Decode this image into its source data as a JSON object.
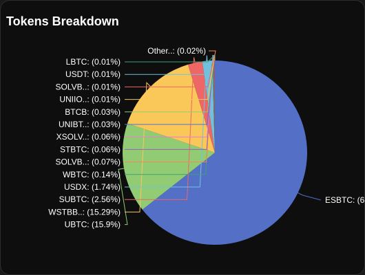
{
  "header": {
    "title": "Tokens Breakdown"
  },
  "chart_data": {
    "type": "pie",
    "title": "Tokens Breakdown",
    "slices": [
      {
        "label": "ESBTC: (6",
        "value": 64.96,
        "color": "#5470c6"
      },
      {
        "label": "UBTC: (15.9%)",
        "value": 15.9,
        "color": "#91cc75"
      },
      {
        "label": "WSTBB..: (15.29%)",
        "value": 15.29,
        "color": "#fac858"
      },
      {
        "label": "SUBTC: (2.56%)",
        "value": 2.56,
        "color": "#ee6666"
      },
      {
        "label": "USDX: (1.74%)",
        "value": 1.74,
        "color": "#73c0de"
      },
      {
        "label": "WBTC: (0.14%)",
        "value": 0.14,
        "color": "#3ba272"
      },
      {
        "label": "SOLVB..: (0.07%)",
        "value": 0.07,
        "color": "#fc8452"
      },
      {
        "label": "STBTC: (0.06%)",
        "value": 0.06,
        "color": "#9a60b4"
      },
      {
        "label": "XSOLV..: (0.06%)",
        "value": 0.06,
        "color": "#ea7ccc"
      },
      {
        "label": "UNIBT..: (0.03%)",
        "value": 0.03,
        "color": "#5470c6"
      },
      {
        "label": "BTCB: (0.03%)",
        "value": 0.03,
        "color": "#91cc75"
      },
      {
        "label": "UNIIO..: (0.01%)",
        "value": 0.01,
        "color": "#fac858"
      },
      {
        "label": "SOLVB..: (0.01%)",
        "value": 0.01,
        "color": "#ee6666"
      },
      {
        "label": "USDT: (0.01%)",
        "value": 0.01,
        "color": "#73c0de"
      },
      {
        "label": "LBTC: (0.01%)",
        "value": 0.01,
        "color": "#3ba272"
      },
      {
        "label": "Other..: (0.02%)",
        "value": 0.02,
        "color": "#fc8452"
      }
    ]
  }
}
